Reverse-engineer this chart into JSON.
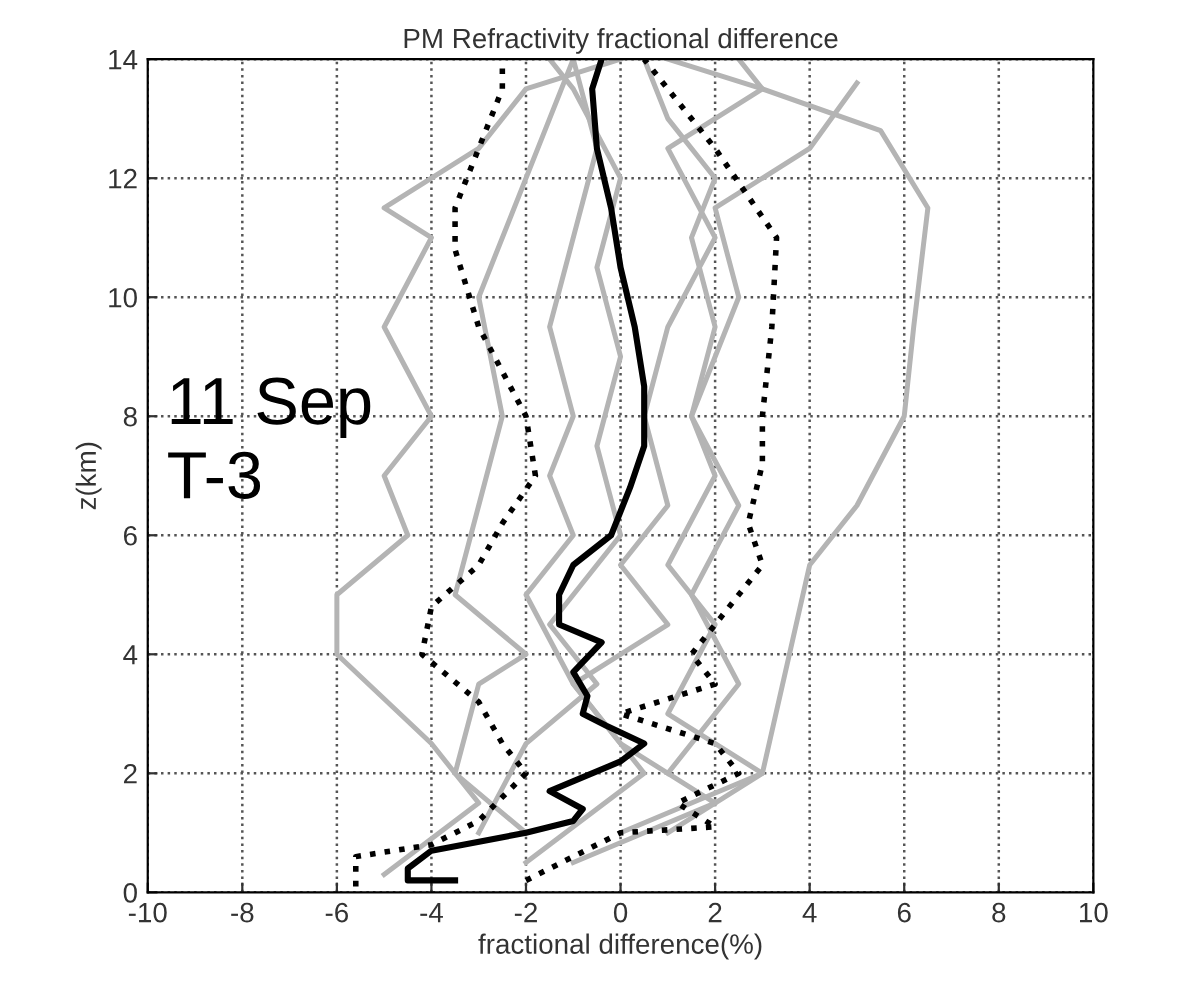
{
  "chart_data": {
    "type": "line",
    "title": "PM Refractivity fractional difference",
    "xlabel": "fractional difference(%)",
    "ylabel": "z(km)",
    "annotations": [
      "11 Sep\nT-3"
    ],
    "xlim": [
      -10,
      10
    ],
    "xticks": [
      -10,
      -8,
      -6,
      -4,
      -2,
      0,
      2,
      4,
      6,
      8,
      10
    ],
    "ylim": [
      0,
      14
    ],
    "yticks": [
      0,
      2,
      4,
      6,
      8,
      10,
      12,
      14
    ],
    "grid": true,
    "legend": false,
    "marker": "none",
    "series": [
      {
        "color": "#b4b4b4",
        "line_style": "solid",
        "x": [
          1,
          3,
          4,
          5,
          6,
          6.2,
          6.5,
          5.5,
          3,
          1
        ],
        "values": [
          1,
          2,
          5.5,
          6.5,
          8,
          9.5,
          11.5,
          12.8,
          13.5,
          14
        ]
      },
      {
        "color": "#b4b4b4",
        "line_style": "solid",
        "x": [
          -5,
          -3,
          -4,
          -6,
          -6,
          -4.5,
          -5,
          -4,
          -5,
          -4,
          -5,
          -3,
          -2,
          0
        ],
        "values": [
          0.3,
          1.5,
          2.5,
          4,
          5,
          6,
          7,
          8,
          9.5,
          11,
          11.5,
          12.5,
          13.5,
          14
        ]
      },
      {
        "color": "#b4b4b4",
        "line_style": "solid",
        "x": [
          -2,
          -3.5,
          -3,
          -2,
          -3.5,
          -3,
          -2.5,
          -3,
          -2,
          -1.5,
          -1
        ],
        "values": [
          1,
          2,
          3.5,
          4,
          5,
          6.5,
          8,
          10,
          12,
          13,
          14
        ]
      },
      {
        "color": "#b4b4b4",
        "line_style": "solid",
        "x": [
          0,
          3,
          1,
          2,
          1,
          2,
          1.5,
          2,
          1.5,
          2,
          1,
          0.5
        ],
        "values": [
          1,
          2,
          3,
          4.5,
          5.5,
          7,
          8,
          9.5,
          11,
          12,
          13,
          14
        ]
      },
      {
        "color": "#b4b4b4",
        "line_style": "solid",
        "x": [
          -1,
          2,
          0,
          -1,
          1,
          0,
          1,
          0.5,
          1,
          2,
          1,
          3,
          2.5
        ],
        "values": [
          0.5,
          1.5,
          2.5,
          3.5,
          4.5,
          5.5,
          6.5,
          8,
          9.5,
          11,
          12.5,
          13.5,
          14
        ]
      },
      {
        "color": "#b4b4b4",
        "line_style": "solid",
        "x": [
          -2,
          0.5,
          -1,
          -2,
          -1,
          -1.5,
          -1,
          -1.5,
          -1,
          -0.5,
          -1
        ],
        "values": [
          0.5,
          2,
          3.5,
          5,
          6,
          7,
          8,
          9.5,
          11,
          12.5,
          14
        ]
      },
      {
        "color": "#b4b4b4",
        "line_style": "solid",
        "x": [
          -3,
          -2,
          -0.5,
          -1.5,
          0,
          -0.5,
          0,
          -0.5,
          0,
          -1,
          -1.5
        ],
        "values": [
          1,
          2.5,
          3.5,
          4.5,
          6,
          7.5,
          9,
          10.5,
          12,
          13.5,
          14
        ]
      },
      {
        "color": "#b4b4b4",
        "line_style": "solid",
        "x": [
          1,
          2.5,
          1.5,
          2.5,
          1.5,
          2.5,
          2,
          4,
          5
        ],
        "values": [
          2,
          3.5,
          5,
          6.5,
          8,
          10,
          11.5,
          12.5,
          13.6
        ]
      },
      {
        "color": "#000000",
        "line_style": "dotted",
        "x": [
          -5.6,
          -5.6,
          -4,
          -3,
          -2,
          -2.5,
          -3,
          -4.2,
          -4,
          -3,
          -2.5,
          -1.8,
          -2,
          -3,
          -3.5,
          -3.5,
          -3,
          -2.5,
          -2.5
        ],
        "values": [
          0.1,
          0.6,
          0.8,
          1.2,
          2,
          2.5,
          3.2,
          4,
          4.8,
          5.5,
          6.2,
          7,
          8,
          9.5,
          10.8,
          11.5,
          12.5,
          13.5,
          14
        ]
      },
      {
        "color": "#000000",
        "line_style": "dotted",
        "x": [
          -2,
          0,
          2,
          1.2,
          2.5,
          2,
          0,
          2,
          1.5,
          3,
          2.7,
          3,
          3,
          3.2,
          3.3,
          2,
          1,
          0.5
        ],
        "values": [
          0.2,
          1,
          1.1,
          1.5,
          2,
          2.5,
          3,
          3.5,
          4,
          5.5,
          6.2,
          7.2,
          8,
          9.5,
          11,
          12.5,
          13.5,
          14
        ]
      },
      {
        "color": "#000000",
        "line_style": "solid",
        "x": [
          -3.5,
          -4.5,
          -4.5,
          -4,
          -2,
          -1,
          -0.8,
          -1.5,
          0,
          0.5,
          -0.3,
          -0.8,
          -0.7,
          -1,
          -0.4,
          -1.3,
          -1.3,
          -1,
          -0.2,
          0.2,
          0.5,
          0.5,
          0.3,
          0,
          -0.2,
          -0.5,
          -0.6,
          -0.4
        ],
        "values": [
          0.2,
          0.2,
          0.4,
          0.7,
          1,
          1.2,
          1.4,
          1.7,
          2.2,
          2.5,
          2.8,
          3,
          3.3,
          3.7,
          4.2,
          4.5,
          5,
          5.5,
          6,
          6.8,
          7.5,
          8.5,
          9.5,
          10.5,
          11.5,
          12.5,
          13.5,
          14
        ]
      }
    ]
  }
}
